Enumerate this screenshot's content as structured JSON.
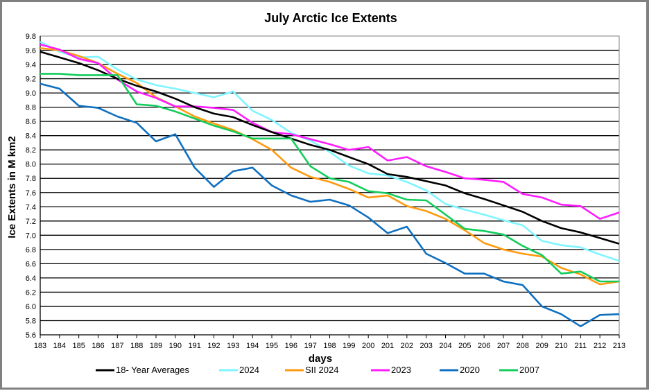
{
  "chart_data": {
    "type": "line",
    "title": "July Arctic Ice Extents",
    "xlabel": "days",
    "ylabel": "Ice Extents in M km2",
    "x": [
      183,
      184,
      185,
      186,
      187,
      188,
      189,
      190,
      191,
      192,
      193,
      194,
      195,
      196,
      197,
      198,
      199,
      200,
      201,
      202,
      203,
      204,
      205,
      206,
      207,
      208,
      209,
      210,
      211,
      212,
      213
    ],
    "xlim": [
      183,
      213
    ],
    "ylim": [
      5.6,
      9.8
    ],
    "x_ticks": [
      "183",
      "184",
      "185",
      "186",
      "187",
      "188",
      "189",
      "190",
      "191",
      "192",
      "193",
      "194",
      "195",
      "196",
      "197",
      "198",
      "199",
      "200",
      "201",
      "202",
      "203",
      "204",
      "205",
      "206",
      "207",
      "208",
      "209",
      "210",
      "211",
      "212",
      "213"
    ],
    "y_ticks": [
      "5.6",
      "5.8",
      "6.0",
      "6.2",
      "6.4",
      "6.6",
      "6.8",
      "7.0",
      "7.2",
      "7.4",
      "7.6",
      "7.8",
      "8.0",
      "8.2",
      "8.4",
      "8.6",
      "8.8",
      "9.0",
      "9.2",
      "9.4",
      "9.6",
      "9.8"
    ],
    "grid": "horizontal",
    "legend_position": "bottom",
    "series": [
      {
        "name": "18- Year Averages",
        "color": "#000000",
        "values": [
          9.58,
          9.5,
          9.42,
          9.32,
          9.2,
          9.1,
          9.02,
          8.92,
          8.8,
          8.71,
          8.66,
          8.55,
          8.45,
          8.36,
          8.27,
          8.2,
          8.1,
          8.0,
          7.86,
          7.82,
          7.76,
          7.7,
          7.59,
          7.51,
          7.42,
          7.33,
          7.2,
          7.1,
          7.04,
          6.96,
          6.88
        ]
      },
      {
        "name": "2024",
        "color": "#7FF5FF",
        "values": [
          9.72,
          9.58,
          9.5,
          9.51,
          9.33,
          9.19,
          9.11,
          9.06,
          9.0,
          8.94,
          9.02,
          8.75,
          8.62,
          8.44,
          8.33,
          8.17,
          7.98,
          7.87,
          7.84,
          7.75,
          7.63,
          7.44,
          7.36,
          7.29,
          7.21,
          7.14,
          6.92,
          6.86,
          6.83,
          6.73,
          6.64
        ]
      },
      {
        "name": "SII 2024",
        "color": "#FF9A0E",
        "values": [
          9.63,
          9.6,
          9.52,
          9.42,
          9.27,
          9.14,
          8.94,
          8.81,
          8.67,
          8.57,
          8.48,
          8.35,
          8.2,
          7.95,
          7.82,
          7.75,
          7.65,
          7.53,
          7.56,
          7.41,
          7.34,
          7.23,
          7.07,
          6.89,
          6.8,
          6.74,
          6.7,
          6.54,
          6.45,
          6.31,
          6.35
        ]
      },
      {
        "name": "2023",
        "color": "#FF1CFF",
        "values": [
          9.68,
          9.61,
          9.48,
          9.42,
          9.19,
          9.02,
          8.93,
          8.81,
          8.81,
          8.79,
          8.76,
          8.58,
          8.45,
          8.42,
          8.35,
          8.28,
          8.2,
          8.24,
          8.05,
          8.1,
          7.97,
          7.89,
          7.8,
          7.78,
          7.75,
          7.58,
          7.53,
          7.43,
          7.41,
          7.23,
          7.32
        ]
      },
      {
        "name": "2020",
        "color": "#0F6FC0",
        "values": [
          9.13,
          9.06,
          8.82,
          8.79,
          8.67,
          8.58,
          8.32,
          8.42,
          7.95,
          7.68,
          7.9,
          7.95,
          7.7,
          7.56,
          7.47,
          7.5,
          7.42,
          7.25,
          7.03,
          7.12,
          6.74,
          6.61,
          6.46,
          6.46,
          6.35,
          6.3,
          6.0,
          5.89,
          5.72,
          5.88,
          5.89
        ]
      },
      {
        "name": "2007",
        "color": "#14CC5C",
        "values": [
          9.27,
          9.27,
          9.25,
          9.25,
          9.25,
          8.84,
          8.82,
          8.74,
          8.64,
          8.54,
          8.46,
          8.36,
          8.36,
          8.36,
          7.97,
          7.8,
          7.75,
          7.62,
          7.59,
          7.5,
          7.49,
          7.29,
          7.09,
          7.06,
          7.01,
          6.85,
          6.72,
          6.46,
          6.49,
          6.35,
          6.35
        ]
      }
    ]
  }
}
